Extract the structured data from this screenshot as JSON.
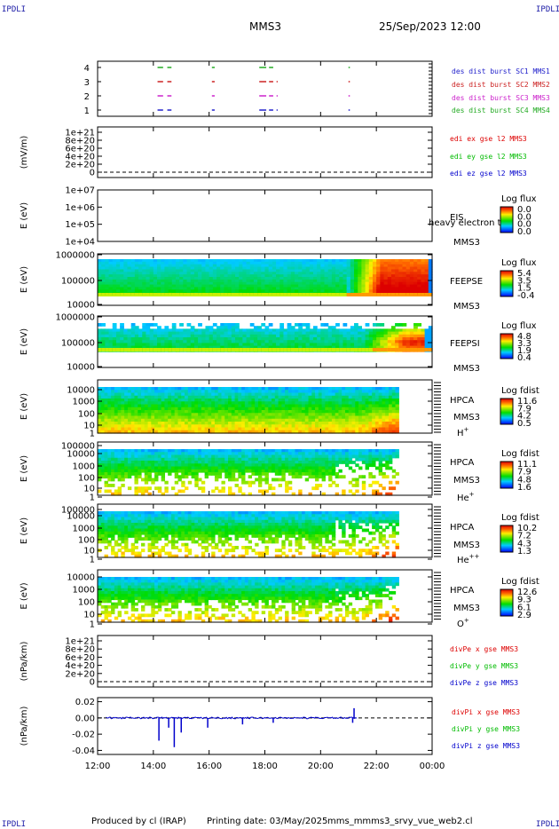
{
  "header": {
    "corner_tl": "IPDLI",
    "corner_tr": "IPDLI",
    "corner_bl": "IPDLI",
    "corner_br": "IPDLI",
    "spacecraft": "MMS3",
    "datetime": "25/Sep/2023 12:00"
  },
  "footer": {
    "produced_by": "Produced by cl (IRAP)",
    "printing_date": "Printing date: 03/May/2025",
    "filename": "mms_mmms3_srvy_vue_web2.cl"
  },
  "time_axis": {
    "ticks": [
      "12:00",
      "14:00",
      "16:00",
      "18:00",
      "20:00",
      "22:00",
      "00:00"
    ],
    "range_hours": [
      12,
      24
    ]
  },
  "colors": {
    "burst_sc1": "#2222cc",
    "burst_sc2": "#cc2222",
    "burst_sc3": "#cc22cc",
    "burst_sc4": "#22aa22",
    "red_label": "#dd0000",
    "green_label": "#00bb00",
    "blue_label": "#0000cc"
  },
  "chart_data": [
    {
      "type": "scatter",
      "panel": "burst",
      "yticks": [
        "4",
        "3",
        "2",
        "1"
      ],
      "series": [
        {
          "name": "des dist burst SC1 MMS1",
          "y": 1,
          "color": "#2222cc",
          "intervals": [
            [
              14.15,
              14.35
            ],
            [
              14.5,
              14.65
            ],
            [
              16.1,
              16.2
            ],
            [
              17.8,
              18.05
            ],
            [
              18.15,
              18.3
            ],
            [
              18.42,
              18.46
            ],
            [
              21.0,
              21.05
            ]
          ]
        },
        {
          "name": "des dist burst SC2 MMS2",
          "y": 3,
          "color": "#cc2222",
          "intervals": [
            [
              14.15,
              14.35
            ],
            [
              14.5,
              14.65
            ],
            [
              16.1,
              16.2
            ],
            [
              17.8,
              18.05
            ],
            [
              18.15,
              18.3
            ],
            [
              18.42,
              18.46
            ],
            [
              21.0,
              21.05
            ]
          ]
        },
        {
          "name": "des dist burst SC3 MMS3",
          "y": 2,
          "color": "#cc22cc",
          "intervals": [
            [
              14.15,
              14.35
            ],
            [
              14.5,
              14.65
            ],
            [
              16.1,
              16.2
            ],
            [
              17.8,
              18.05
            ],
            [
              18.15,
              18.3
            ],
            [
              18.42,
              18.46
            ],
            [
              21.0,
              21.05
            ]
          ]
        },
        {
          "name": "des dist burst SC4 MMS4",
          "y": 4,
          "color": "#22aa22",
          "intervals": [
            [
              14.15,
              14.35
            ],
            [
              14.5,
              14.65
            ],
            [
              16.1,
              16.2
            ],
            [
              17.8,
              18.05
            ],
            [
              18.15,
              18.3
            ],
            [
              21.0,
              21.05
            ]
          ]
        }
      ]
    },
    {
      "type": "line",
      "panel": "edi",
      "ylabel": "(mV/m)",
      "yticks": [
        "1e+21",
        "8e+20",
        "6e+20",
        "4e+20",
        "2e+20",
        "0"
      ],
      "legend": [
        "edi ex gse l2 MMS3",
        "edi ey gse l2 MMS3",
        "edi ez gse l2 MMS3"
      ],
      "legend_colors": [
        "#dd0000",
        "#00bb00",
        "#0000cc"
      ]
    },
    {
      "type": "heatmap",
      "panel": "eis",
      "ylabel": "E (eV)",
      "yticks": [
        "1e+07",
        "1e+06",
        "1e+05",
        "1e+04"
      ],
      "name": "EIS",
      "overlay": "heavy electron to",
      "sc": "MMS3",
      "cbar_title": "Log flux",
      "cbar_ticks": [
        "0.0",
        "0.0",
        "0.0",
        "0.0"
      ]
    },
    {
      "type": "heatmap",
      "panel": "feepse",
      "ylabel": "E (eV)",
      "yticks": [
        "1000000",
        "100000",
        "10000"
      ],
      "name": "FEEPSE",
      "sc": "MMS3",
      "cbar_title": "Log flux",
      "cbar_ticks": [
        "5.4",
        "3.5",
        "1.5",
        "-0.4"
      ]
    },
    {
      "type": "heatmap",
      "panel": "feepsi",
      "ylabel": "E (eV)",
      "yticks": [
        "1000000",
        "100000",
        "10000"
      ],
      "name": "FEEPSI",
      "sc": "MMS3",
      "cbar_title": "Log flux",
      "cbar_ticks": [
        "4.8",
        "3.3",
        "1.9",
        "0.4"
      ]
    },
    {
      "type": "heatmap",
      "panel": "hpca_h",
      "ylabel": "E (eV)",
      "yticks": [
        "10000",
        "1000",
        "100",
        "10",
        "1"
      ],
      "name": "HPCA",
      "sc": "MMS3",
      "species_base": "H",
      "species_sup": "+",
      "cbar_title": "Log fdist",
      "cbar_ticks": [
        "11.6",
        "7.9",
        "4.2",
        "0.5"
      ]
    },
    {
      "type": "heatmap",
      "panel": "hpca_he",
      "ylabel": "E (eV)",
      "yticks": [
        "100000",
        "10000",
        "1000",
        "100",
        "10",
        "1"
      ],
      "name": "HPCA",
      "sc": "MMS3",
      "species_base": "He",
      "species_sup": "+",
      "cbar_title": "Log fdist",
      "cbar_ticks": [
        "11.1",
        "7.9",
        "4.8",
        "1.6"
      ]
    },
    {
      "type": "heatmap",
      "panel": "hpca_hepp",
      "ylabel": "E (eV)",
      "yticks": [
        "100000",
        "10000",
        "1000",
        "100",
        "10",
        "1"
      ],
      "name": "HPCA",
      "sc": "MMS3",
      "species_base": "He",
      "species_sup": "++",
      "cbar_title": "Log fdist",
      "cbar_ticks": [
        "10.2",
        "7.2",
        "4.3",
        "1.3"
      ]
    },
    {
      "type": "heatmap",
      "panel": "hpca_o",
      "ylabel": "E (eV)",
      "yticks": [
        "10000",
        "1000",
        "100",
        "10",
        "1"
      ],
      "name": "HPCA",
      "sc": "MMS3",
      "species_base": "O",
      "species_sup": "+",
      "cbar_title": "Log fdist",
      "cbar_ticks": [
        "12.6",
        "9.3",
        "6.1",
        "2.9"
      ]
    },
    {
      "type": "line",
      "panel": "divpe",
      "ylabel": "(nPa/km)",
      "yticks": [
        "1e+21",
        "8e+20",
        "6e+20",
        "4e+20",
        "2e+20",
        "0"
      ],
      "legend": [
        "divPe x gse MMS3",
        "divPe y gse MMS3",
        "divPe z gse MMS3"
      ],
      "legend_colors": [
        "#dd0000",
        "#00bb00",
        "#0000cc"
      ]
    },
    {
      "type": "line",
      "panel": "divpi",
      "ylabel": "(nPa/km)",
      "yticks": [
        "0.02",
        "0.00",
        "-0.02",
        "-0.04"
      ],
      "ylim": [
        -0.045,
        0.025
      ],
      "legend": [
        "divPi x gse MMS3",
        "divPi y gse MMS3",
        "divPi z gse MMS3"
      ],
      "legend_colors": [
        "#dd0000",
        "#00bb00",
        "#0000cc"
      ],
      "series_z_spikes": [
        {
          "t": 14.2,
          "v": -0.028
        },
        {
          "t": 14.55,
          "v": -0.012
        },
        {
          "t": 14.75,
          "v": -0.036
        },
        {
          "t": 15.0,
          "v": -0.018
        },
        {
          "t": 15.95,
          "v": -0.012
        },
        {
          "t": 17.2,
          "v": -0.008
        },
        {
          "t": 18.3,
          "v": -0.006
        },
        {
          "t": 21.15,
          "v": -0.006
        },
        {
          "t": 21.2,
          "v": 0.012
        }
      ]
    }
  ]
}
